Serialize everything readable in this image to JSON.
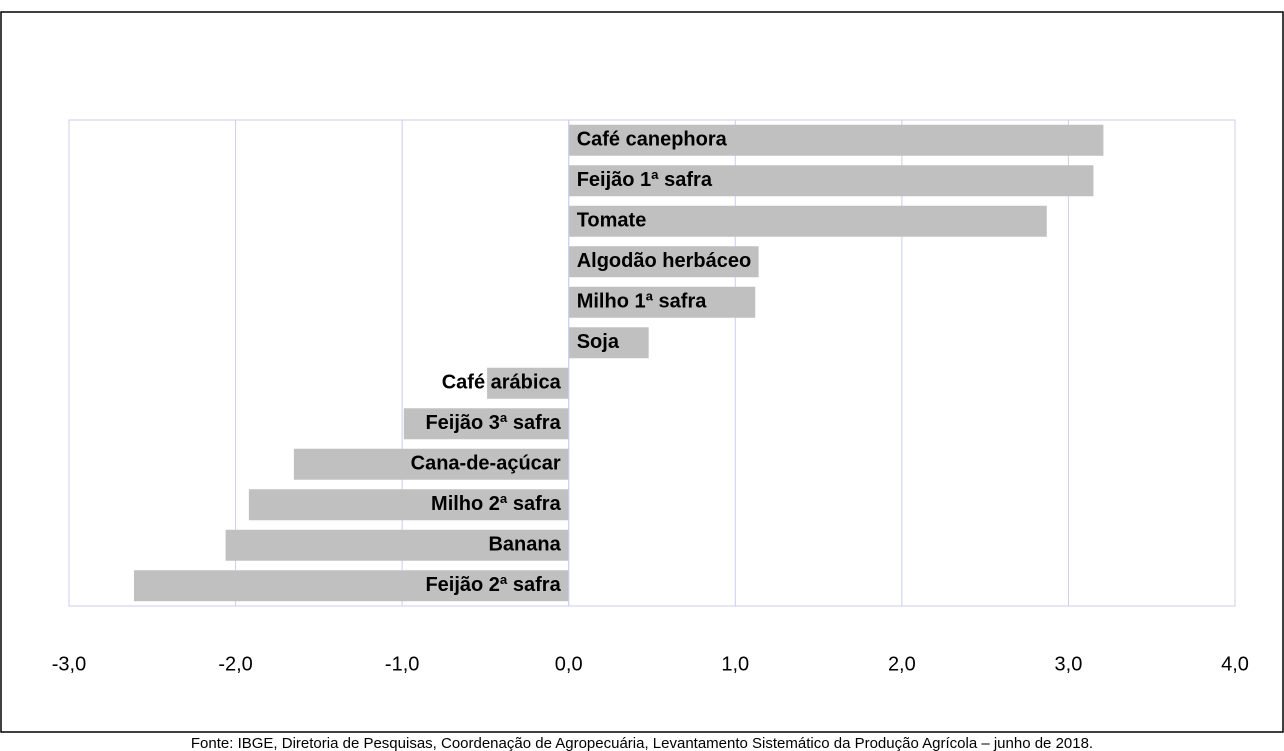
{
  "chart_data": {
    "type": "barh",
    "categories": [
      "Café canephora",
      "Feijão 1ª safra",
      "Tomate",
      "Algodão herbáceo",
      "Milho 1ª safra",
      "Soja",
      "Café arábica",
      "Feijão 3ª safra",
      "Cana-de-açúcar",
      "Milho 2ª safra",
      "Banana",
      "Feijão 2ª safra"
    ],
    "values": [
      3.21,
      3.15,
      2.87,
      1.14,
      1.12,
      0.48,
      -0.49,
      -0.99,
      -1.65,
      -1.92,
      -2.06,
      -2.61
    ],
    "color": "#c0c0c0",
    "xlim": [
      -3,
      4
    ],
    "xticks": [
      {
        "value": -3,
        "label": "-3,0"
      },
      {
        "value": -2,
        "label": "-2,0"
      },
      {
        "value": -1,
        "label": "-1,0"
      },
      {
        "value": 0,
        "label": "0,0"
      },
      {
        "value": 1,
        "label": "1,0"
      },
      {
        "value": 2,
        "label": "2,0"
      },
      {
        "value": 3,
        "label": "3,0"
      },
      {
        "value": 4,
        "label": "4,0"
      }
    ],
    "grid": true,
    "source": "Fonte: IBGE, Diretoria de Pesquisas, Coordenação de Agropecuária, Levantamento Sistemático da Produção Agrícola – junho de 2018."
  }
}
